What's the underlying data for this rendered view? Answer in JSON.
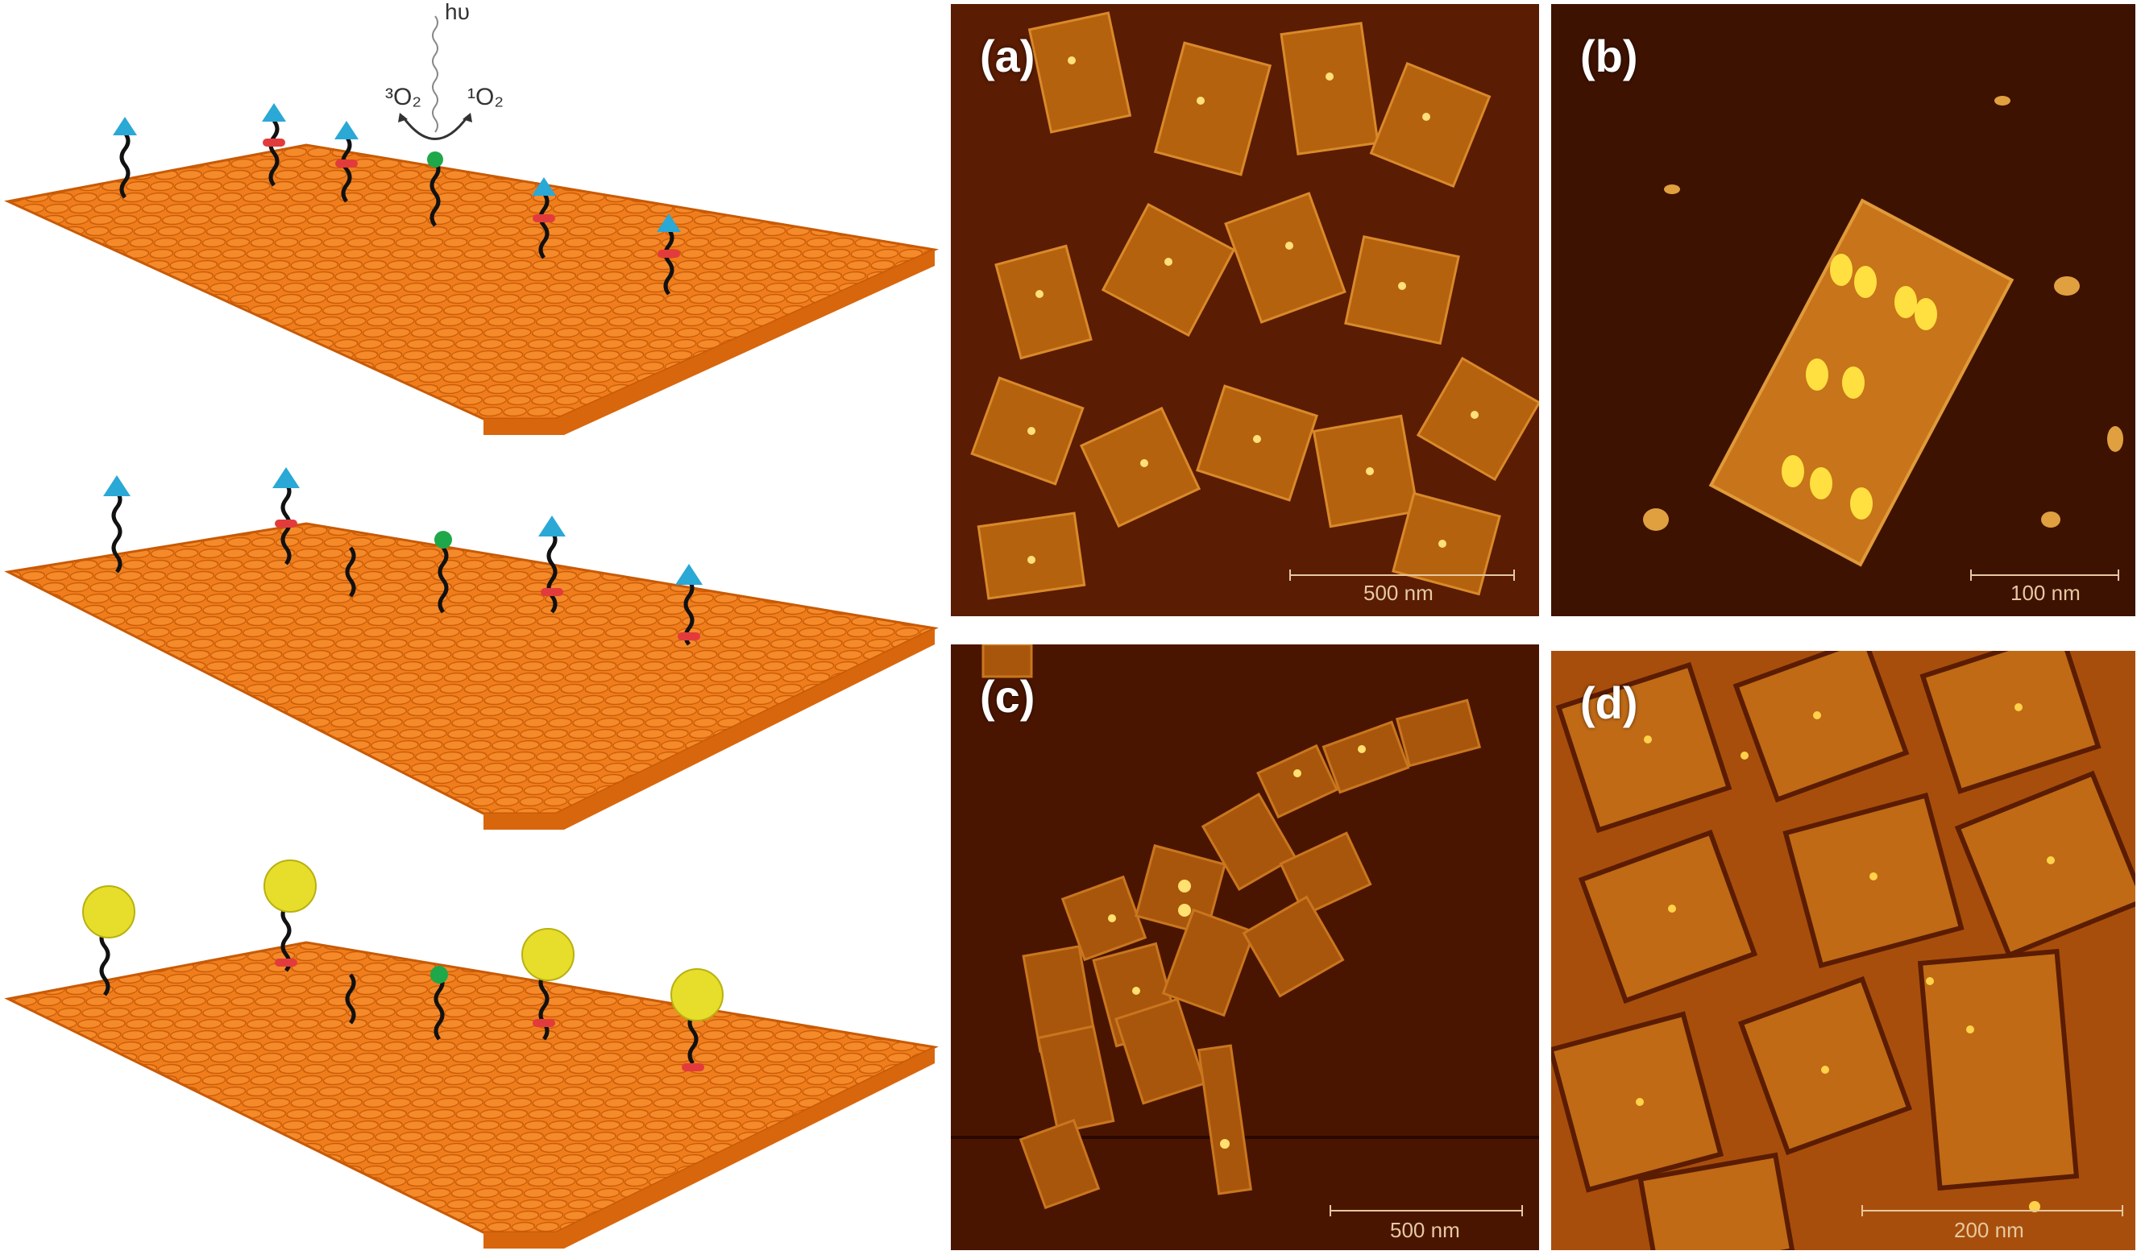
{
  "scheme": {
    "light_label": "hυ",
    "triplet_oxygen": "³O₂",
    "singlet_oxygen": "¹O₂",
    "colors": {
      "surface": "#f07d1c",
      "surface_dark": "#c85a06",
      "tag": "#2aa8d6",
      "photosensitizer": "#1ea84a",
      "cleavage_site": "#e33b3b",
      "particle": "#e6de2a"
    }
  },
  "panels": [
    {
      "label": "(a)",
      "scale": "500 nm"
    },
    {
      "label": "(b)",
      "scale": "100 nm"
    },
    {
      "label": "(c)",
      "scale": "500 nm"
    },
    {
      "label": "(d)",
      "scale": "200 nm"
    }
  ]
}
